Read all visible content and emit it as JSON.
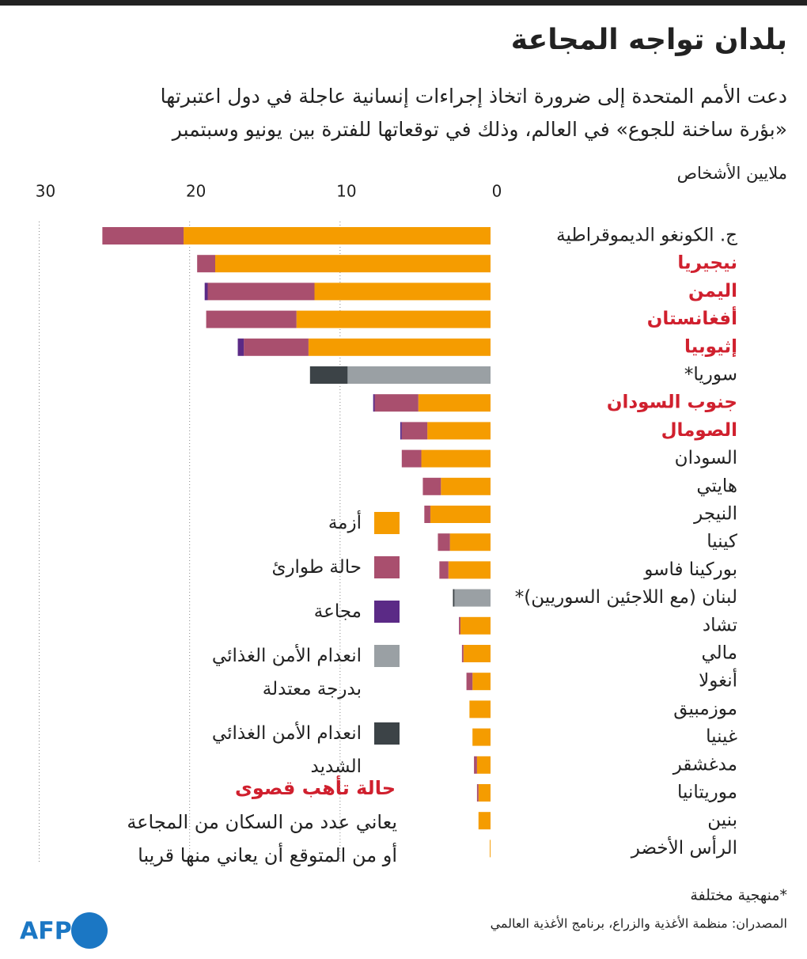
{
  "chart_data": {
    "type": "stacked-barh",
    "title": "بلدان تواجه المجاعة",
    "subtitle": [
      "دعت الأمم المتحدة إلى ضرورة اتخاذ إجراءات إنسانية عاجلة في دول اعتبرتها",
      "«بؤرة ساخنة للجوع» في العالم، وذلك في توقعاتها للفترة بين يونيو وسبتمبر"
    ],
    "axis_label": "ملايين الأشخاص",
    "xlim": [
      0,
      30.5
    ],
    "xticks": [
      0,
      10,
      20,
      30
    ],
    "grid": true,
    "categories": [
      "ج. الكونغو الديموقراطية",
      "نيجيريا",
      "اليمن",
      "أفغانستان",
      "إثيوبيا",
      "سوريا*",
      "جنوب السودان",
      "الصومال",
      "السودان",
      "هايتي",
      "النيجر",
      "كينيا",
      "بوركينا فاسو",
      "لبنان (مع اللاجئين السوريين)*",
      "تشاد",
      "مالي",
      "أنغولا",
      "موزمبيق",
      "غينيا",
      "مدغشقر",
      "موريتانيا",
      "بنين",
      "الرأس الأخضر"
    ],
    "label_colors": [
      "#222222",
      "#d0202e",
      "#d0202e",
      "#d0202e",
      "#d0202e",
      "#222222",
      "#d0202e",
      "#d0202e",
      "#222222",
      "#222222",
      "#222222",
      "#222222",
      "#222222",
      "#222222",
      "#222222",
      "#222222",
      "#222222",
      "#222222",
      "#222222",
      "#222222",
      "#222222",
      "#222222",
      "#222222"
    ],
    "series": [
      {
        "name": "أزمة",
        "color": "#f59c00",
        "values": [
          20.4,
          18.3,
          11.7,
          12.9,
          12.1,
          null,
          4.8,
          4.2,
          4.6,
          3.3,
          4.0,
          2.7,
          2.8,
          null,
          2.0,
          1.8,
          1.2,
          1.4,
          1.2,
          0.9,
          0.8,
          0.8,
          0.05
        ]
      },
      {
        "name": "حالة طوارئ",
        "color": "#a94f6e",
        "values": [
          5.4,
          1.2,
          7.1,
          6.0,
          4.3,
          null,
          2.9,
          1.7,
          1.3,
          1.2,
          0.4,
          0.8,
          0.6,
          null,
          0.1,
          0.1,
          0.4,
          null,
          null,
          0.2,
          0.1,
          null,
          null
        ]
      },
      {
        "name": "مجاعة",
        "color": "#5b2a86",
        "values": [
          null,
          null,
          0.2,
          null,
          0.4,
          null,
          0.1,
          0.1,
          null,
          null,
          null,
          null,
          null,
          null,
          null,
          null,
          null,
          null,
          null,
          null,
          null,
          null,
          null
        ]
      },
      {
        "name": "انعدام الأمن الغذائي بدرجة معتدلة",
        "color": "#9aa0a4",
        "values": [
          null,
          null,
          null,
          null,
          null,
          9.5,
          null,
          null,
          null,
          null,
          null,
          null,
          null,
          2.4,
          null,
          null,
          null,
          null,
          null,
          null,
          null,
          null,
          null
        ]
      },
      {
        "name": "انعدام الأمن الغذائي الشديد",
        "color": "#3c4347",
        "values": [
          null,
          null,
          null,
          null,
          null,
          2.5,
          null,
          null,
          null,
          null,
          null,
          null,
          null,
          0.1,
          null,
          null,
          null,
          null,
          null,
          null,
          null,
          null,
          null
        ]
      }
    ],
    "alert_title": "حالة تأهب قصوى",
    "alert_text": [
      "يعاني عدد من السكان من المجاعة",
      "أو من المتوقع أن يعاني منها قريبا"
    ],
    "footnote": "*منهجية مختلفة",
    "source": "المصدران: منظمة الأغذية والزراع، برنامج الأغذية العالمي",
    "logo": "AFP"
  }
}
